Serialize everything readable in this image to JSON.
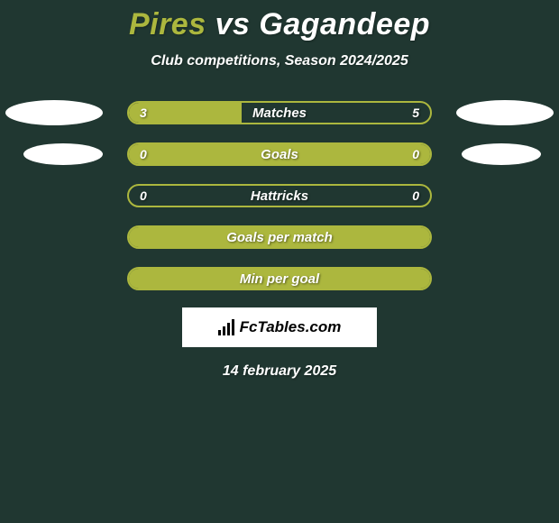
{
  "title": {
    "player1": "Pires",
    "vs": "vs",
    "player2": "Gagandeep"
  },
  "subtitle": "Club competitions, Season 2024/2025",
  "colors": {
    "background": "#203731",
    "accent": "#acb73e",
    "text": "#ffffff",
    "oval": "#ffffff"
  },
  "rows": [
    {
      "label": "Matches",
      "left_value": "3",
      "right_value": "5",
      "left_fill_pct": 37.5,
      "show_left_oval": true,
      "show_right_oval": true,
      "oval_size": "large"
    },
    {
      "label": "Goals",
      "left_value": "0",
      "right_value": "0",
      "left_fill_pct": 100,
      "show_left_oval": true,
      "show_right_oval": true,
      "oval_size": "small"
    },
    {
      "label": "Hattricks",
      "left_value": "0",
      "right_value": "0",
      "left_fill_pct": 0,
      "show_left_oval": false,
      "show_right_oval": false
    },
    {
      "label": "Goals per match",
      "left_value": "",
      "right_value": "",
      "left_fill_pct": 100,
      "show_left_oval": false,
      "show_right_oval": false
    },
    {
      "label": "Min per goal",
      "left_value": "",
      "right_value": "",
      "left_fill_pct": 100,
      "show_left_oval": false,
      "show_right_oval": false
    }
  ],
  "logo_text": "FcTables.com",
  "date": "14 february 2025"
}
